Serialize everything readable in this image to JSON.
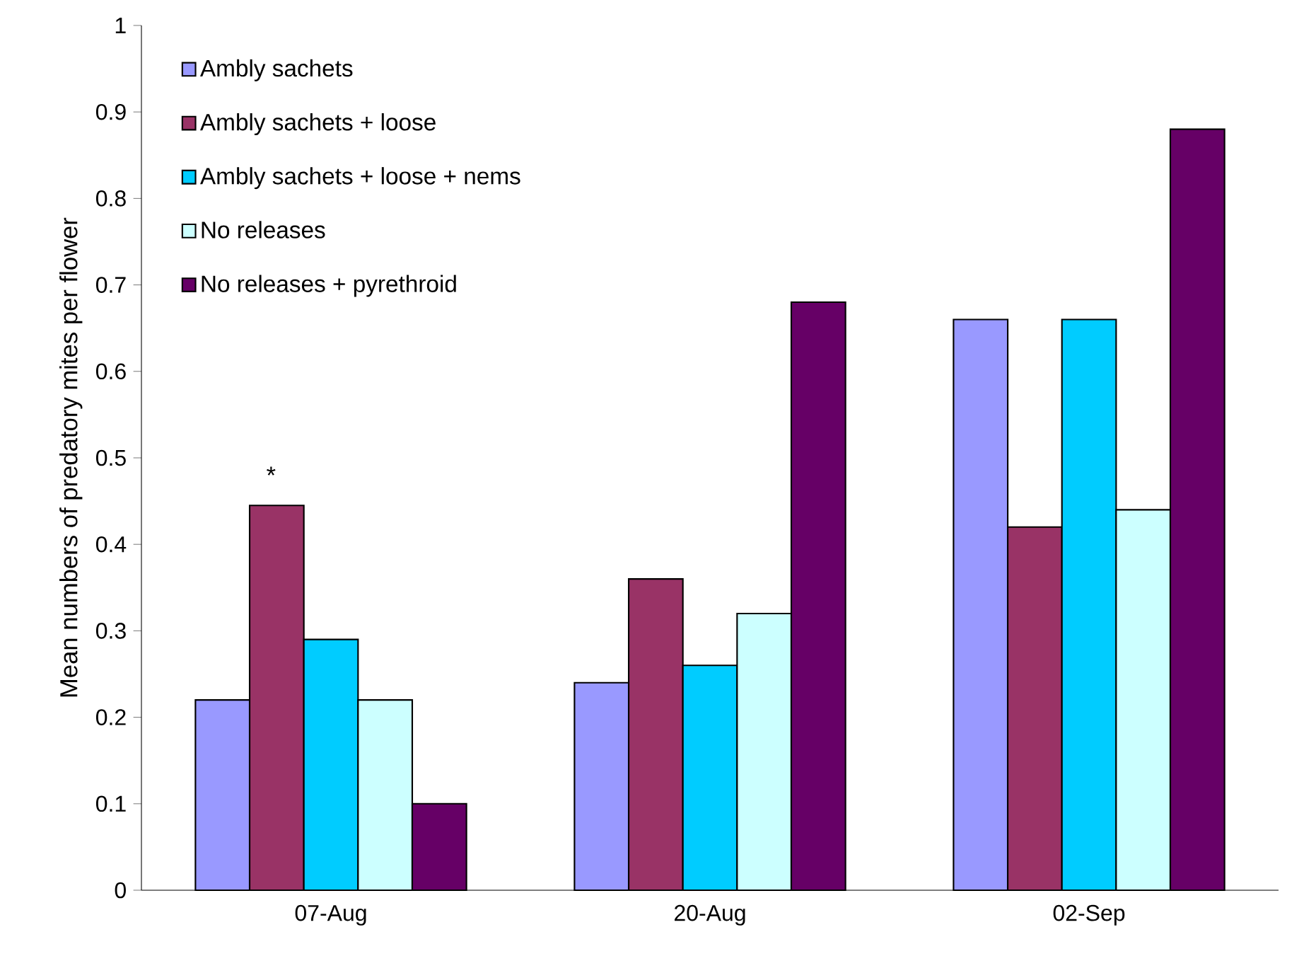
{
  "chart_data": {
    "type": "bar",
    "ylabel": "Mean numbers of predatory mites per flower",
    "categories": [
      "07-Aug",
      "20-Aug",
      "02-Sep"
    ],
    "series": [
      {
        "name": "Ambly sachets",
        "color": "#9999ff",
        "values": [
          0.22,
          0.24,
          0.66
        ]
      },
      {
        "name": "Ambly sachets + loose",
        "color": "#993366",
        "values": [
          0.445,
          0.36,
          0.42
        ]
      },
      {
        "name": "Ambly sachets + loose + nems",
        "color": "#00ccff",
        "values": [
          0.29,
          0.26,
          0.66
        ]
      },
      {
        "name": "No releases",
        "color": "#ccffff",
        "values": [
          0.22,
          0.32,
          0.44
        ]
      },
      {
        "name": "No releases + pyrethroid",
        "color": "#660066",
        "values": [
          0.1,
          0.68,
          0.88
        ]
      }
    ],
    "ylim": [
      0,
      1
    ],
    "yticks": [
      0,
      0.1,
      0.2,
      0.3,
      0.4,
      0.5,
      0.6,
      0.7,
      0.8,
      0.9,
      1
    ],
    "annotations": [
      "*"
    ],
    "grid": false,
    "legend": "top left"
  }
}
